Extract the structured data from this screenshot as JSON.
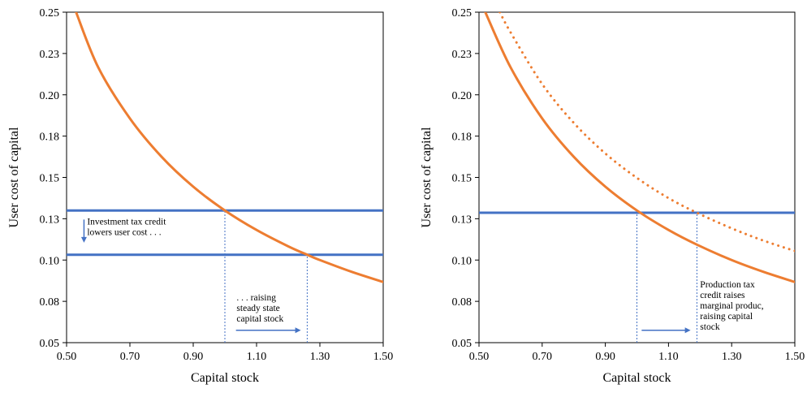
{
  "chart_data": [
    {
      "type": "line",
      "title": "",
      "xlabel": "Capital stock",
      "ylabel": "User cost of capital",
      "xlim": [
        0.5,
        1.5
      ],
      "ylim": [
        0.05,
        0.25
      ],
      "xticks": [
        0.5,
        0.7,
        0.9,
        1.1,
        1.3,
        1.5
      ],
      "xtick_labels": [
        "0.50",
        "0.70",
        "0.90",
        "1.10",
        "1.30",
        "1.50"
      ],
      "yticks": [
        0.05,
        0.075,
        0.1,
        0.125,
        0.15,
        0.175,
        0.2,
        0.225,
        0.25
      ],
      "ytick_labels": [
        "0.05",
        "0.08",
        "0.10",
        "0.13",
        "0.15",
        "0.18",
        "0.20",
        "0.23",
        "0.25"
      ],
      "grid": false,
      "series": [
        {
          "style": "solid",
          "color": "#ED7D31",
          "x": [
            0.53,
            0.6,
            0.7,
            0.8,
            0.9,
            1.0,
            1.1,
            1.2,
            1.26,
            1.3,
            1.4,
            1.5
          ],
          "y": [
            0.25,
            0.2166,
            0.1857,
            0.1625,
            0.1444,
            0.13,
            0.1182,
            0.1083,
            0.1032,
            0.1,
            0.0929,
            0.0867
          ]
        }
      ],
      "hlines": [
        {
          "y": 0.13,
          "color": "#4472C4"
        },
        {
          "y": 0.1032,
          "color": "#4472C4"
        }
      ],
      "vlines": [
        {
          "x": 1.0,
          "y_top": 0.13,
          "color": "#4472C4",
          "style": "dotted"
        },
        {
          "x": 1.26,
          "y_top": 0.1032,
          "color": "#4472C4",
          "style": "dotted"
        }
      ],
      "arrows": [
        {
          "direction": "down",
          "x": 0.555,
          "y_from": 0.1245,
          "y_to": 0.1105,
          "color": "#4472C4"
        },
        {
          "direction": "right",
          "y": 0.0575,
          "x_from": 1.035,
          "x_to": 1.24,
          "color": "#4472C4"
        }
      ],
      "annotations": [
        {
          "lines": [
            "Investment tax credit",
            "lowers user cost . . ."
          ],
          "x": 0.565,
          "y": 0.1215,
          "anchor": "start"
        },
        {
          "lines": [
            ". . . raising",
            "steady state",
            "capital stock"
          ],
          "x": 1.037,
          "y": 0.0755,
          "anchor": "start"
        }
      ]
    },
    {
      "type": "line",
      "title": "",
      "xlabel": "Capital stock",
      "ylabel": "User cost of capital",
      "xlim": [
        0.5,
        1.5
      ],
      "ylim": [
        0.05,
        0.25
      ],
      "xticks": [
        0.5,
        0.7,
        0.9,
        1.1,
        1.3,
        1.5
      ],
      "xtick_labels": [
        "0.50",
        "0.70",
        "0.90",
        "1.10",
        "1.30",
        "1.50"
      ],
      "yticks": [
        0.05,
        0.075,
        0.1,
        0.125,
        0.15,
        0.175,
        0.2,
        0.225,
        0.25
      ],
      "ytick_labels": [
        "0.05",
        "0.08",
        "0.10",
        "0.13",
        "0.15",
        "0.18",
        "0.20",
        "0.23",
        "0.25"
      ],
      "grid": false,
      "series": [
        {
          "style": "solid",
          "color": "#ED7D31",
          "x": [
            0.52,
            0.6,
            0.7,
            0.8,
            0.9,
            1.0,
            1.1,
            1.19,
            1.3,
            1.4,
            1.5
          ],
          "y": [
            0.25,
            0.2166,
            0.1857,
            0.1625,
            0.1444,
            0.13,
            0.1182,
            0.1093,
            0.1,
            0.0929,
            0.0867
          ]
        },
        {
          "style": "dotted",
          "color": "#ED7D31",
          "x": [
            0.566,
            0.6,
            0.7,
            0.8,
            0.9,
            1.0,
            1.1,
            1.19,
            1.3,
            1.4,
            1.5
          ],
          "y": [
            0.25,
            0.2378,
            0.2065,
            0.183,
            0.1645,
            0.1497,
            0.1375,
            0.1286,
            0.1192,
            0.1118,
            0.1055
          ]
        }
      ],
      "hlines": [
        {
          "y": 0.1286,
          "color": "#4472C4"
        }
      ],
      "vlines": [
        {
          "x": 1.0,
          "y_top": 0.1286,
          "color": "#4472C4",
          "style": "dotted"
        },
        {
          "x": 1.19,
          "y_top": 0.1286,
          "color": "#4472C4",
          "style": "dotted"
        }
      ],
      "arrows": [
        {
          "direction": "right",
          "y": 0.0575,
          "x_from": 1.015,
          "x_to": 1.17,
          "color": "#4472C4"
        }
      ],
      "annotations": [
        {
          "lines": [
            "Production tax",
            "credit raises",
            "marginal produc,",
            "raising capital",
            "stock"
          ],
          "x": 1.2,
          "y": 0.0835,
          "anchor": "start"
        }
      ]
    }
  ]
}
